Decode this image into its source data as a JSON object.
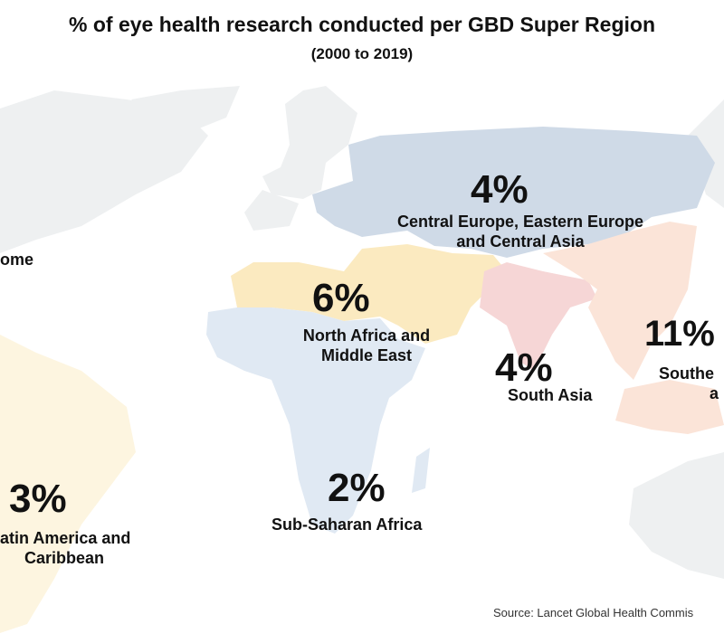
{
  "title": "% of eye health research conducted per GBD Super Region",
  "subtitle": "(2000 to 2019)",
  "regions": [
    {
      "id": "high-income",
      "label": "ome",
      "color": "#eef0f1"
    },
    {
      "id": "central-europe",
      "pct": "4%",
      "label_line1": "Central Europe, Eastern Europe",
      "label_line2": "and Central Asia",
      "color": "#cfdae7"
    },
    {
      "id": "north-africa",
      "pct": "6%",
      "label_line1": "North Africa and",
      "label_line2": "Middle East",
      "color": "#fbeac0"
    },
    {
      "id": "south-asia",
      "pct": "4%",
      "label_line1": "South Asia",
      "color": "#f6d6d6"
    },
    {
      "id": "southeast-asia",
      "pct": "11%",
      "label_line1": "Southe",
      "label_line2": "a",
      "color": "#fbe4d8"
    },
    {
      "id": "sub-saharan",
      "pct": "2%",
      "label_line1": "Sub-Saharan Africa",
      "color": "#e0e9f3"
    },
    {
      "id": "latin-america",
      "pct": "3%",
      "label_line1": "atin America and",
      "label_line2": "Caribbean",
      "color": "#fdf5e0"
    }
  ],
  "source": "Source: Lancet Global Health Commis"
}
